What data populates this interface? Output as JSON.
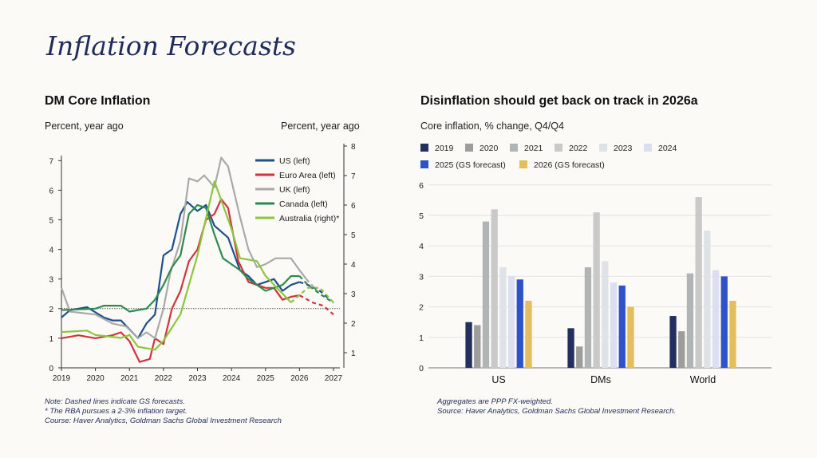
{
  "page_title": "Inflation Forecasts",
  "left_panel": {
    "title": "DM Core Inflation",
    "left_axis_label": "Percent, year ago",
    "right_axis_label": "Percent, year ago",
    "notes": [
      "Note: Dashed lines indicate GS forecasts.",
      "* The RBA pursues a 2-3% inflation target.",
      "Course: Haver Analytics, Goldman Sachs Global Investment Research"
    ]
  },
  "right_panel": {
    "title": "Disinflation should get back on track in 2026a",
    "subtitle": "Core inflation, % change, Q4/Q4",
    "notes": [
      "Aggregates are PPP FX-weighted.",
      "Source: Haver Analytics, Goldman Sachs Global Investment Research."
    ]
  },
  "chart_data": [
    {
      "type": "line",
      "title": "DM Core Inflation",
      "ylabel": "Percent, year ago",
      "y2label": "Percent, year ago",
      "xlim": [
        2019,
        2027
      ],
      "ylim": [
        0,
        7.4
      ],
      "y2lim": [
        0.5,
        8
      ],
      "x_ticks": [
        "2019",
        "2020",
        "2021",
        "2022",
        "2023",
        "2024",
        "2025",
        "2026",
        "2027"
      ],
      "y_ticks": [
        "0",
        "1",
        "2",
        "3",
        "4",
        "5",
        "6",
        "7"
      ],
      "y2_ticks": [
        "1",
        "2",
        "3",
        "4",
        "5",
        "6",
        "7",
        "8"
      ],
      "reference_line": 2,
      "forecast_start": 2026.2,
      "legend_position": "top-right",
      "series": [
        {
          "name": "US (left)",
          "axis": "left",
          "color": "#1f4e8c",
          "x": [
            2019,
            2019.25,
            2019.75,
            2020.25,
            2020.5,
            2020.75,
            2021,
            2021.25,
            2021.5,
            2021.75,
            2022,
            2022.25,
            2022.5,
            2022.7,
            2023,
            2023.25,
            2023.5,
            2023.9,
            2024.25,
            2024.5,
            2024.75,
            2025,
            2025.25,
            2025.5,
            2025.75,
            2026,
            2026.25,
            2026.6,
            2026.9
          ],
          "y": [
            1.7,
            1.95,
            2.05,
            1.7,
            1.6,
            1.6,
            1.3,
            1.0,
            1.5,
            1.8,
            3.8,
            4.0,
            5.2,
            5.6,
            5.3,
            5.5,
            4.8,
            4.4,
            3.3,
            3.1,
            2.8,
            2.9,
            3.0,
            2.6,
            2.8,
            2.9,
            2.8,
            2.6,
            2.3
          ]
        },
        {
          "name": "Euro Area (left)",
          "axis": "left",
          "color": "#d13438",
          "x": [
            2019,
            2019.5,
            2020,
            2020.5,
            2020.75,
            2021,
            2021.3,
            2021.6,
            2021.75,
            2022,
            2022.25,
            2022.5,
            2022.75,
            2023,
            2023.25,
            2023.5,
            2023.7,
            2023.9,
            2024.2,
            2024.5,
            2024.75,
            2025,
            2025.25,
            2025.5,
            2025.75,
            2026,
            2026.4,
            2026.7,
            2027
          ],
          "y": [
            1.0,
            1.1,
            1.0,
            1.1,
            1.2,
            0.9,
            0.2,
            0.3,
            1.0,
            0.8,
            2.0,
            2.6,
            3.6,
            4.0,
            5.0,
            5.2,
            5.7,
            5.4,
            3.6,
            2.9,
            2.8,
            2.7,
            2.7,
            2.3,
            2.4,
            2.45,
            2.2,
            2.1,
            1.8
          ]
        },
        {
          "name": "UK (left)",
          "axis": "left",
          "color": "#a9a9a9",
          "x": [
            2019,
            2019.25,
            2020,
            2020.5,
            2020.9,
            2021.25,
            2021.5,
            2021.75,
            2022,
            2022.2,
            2022.5,
            2022.75,
            2023,
            2023.2,
            2023.5,
            2023.7,
            2023.9,
            2024.25,
            2024.5,
            2024.75,
            2025,
            2025.3,
            2025.75,
            2026,
            2026.2,
            2026.6,
            2027
          ],
          "y": [
            2.7,
            1.9,
            1.8,
            1.5,
            1.4,
            1.0,
            1.2,
            1.0,
            2.0,
            3.2,
            4.3,
            6.4,
            6.3,
            6.5,
            6.1,
            7.1,
            6.8,
            5.1,
            4.0,
            3.4,
            3.5,
            3.7,
            3.7,
            3.3,
            3.0,
            2.5,
            2.2
          ]
        },
        {
          "name": "Canada (left)",
          "axis": "left",
          "color": "#2e8b4e",
          "x": [
            2019,
            2020,
            2020.25,
            2020.75,
            2021,
            2021.5,
            2021.75,
            2022,
            2022.25,
            2022.5,
            2022.75,
            2023,
            2023.25,
            2023.5,
            2023.75,
            2024,
            2024.25,
            2024.5,
            2024.75,
            2025,
            2025.5,
            2025.75,
            2026,
            2026.25,
            2026.6,
            2027
          ],
          "y": [
            1.95,
            2.0,
            2.1,
            2.1,
            1.9,
            2.0,
            2.3,
            2.8,
            3.4,
            3.8,
            5.2,
            5.5,
            5.4,
            4.5,
            3.7,
            3.5,
            3.3,
            3.0,
            2.8,
            2.6,
            2.8,
            3.1,
            3.1,
            2.8,
            2.5,
            2.2
          ]
        },
        {
          "name": "Australia (right)*",
          "axis": "right",
          "color": "#8cc63f",
          "x": [
            2019,
            2019.75,
            2020,
            2020.75,
            2021,
            2021.25,
            2021.75,
            2022,
            2022.5,
            2023,
            2023.5,
            2024,
            2024.25,
            2024.75,
            2025,
            2025.75,
            2026.25,
            2026.6,
            2027
          ],
          "y": [
            1.7,
            1.75,
            1.6,
            1.5,
            1.6,
            1.2,
            1.1,
            1.4,
            2.3,
            4.3,
            6.8,
            5.2,
            4.2,
            4.1,
            3.6,
            2.7,
            3.2,
            3.2,
            2.7
          ]
        }
      ]
    },
    {
      "type": "bar",
      "title": "Disinflation should get back on track in 2026a",
      "ylabel": "Core inflation, % change, Q4/Q4",
      "categories": [
        "US",
        "DMs",
        "World"
      ],
      "ylim": [
        0,
        6
      ],
      "y_ticks": [
        "0",
        "1",
        "2",
        "3",
        "4",
        "5",
        "6"
      ],
      "grid": true,
      "legend_position": "top",
      "series": [
        {
          "name": "2019",
          "color": "#232f5c",
          "values": [
            1.5,
            1.3,
            1.7
          ]
        },
        {
          "name": "2020",
          "color": "#9d9d9d",
          "values": [
            1.4,
            0.7,
            1.2
          ]
        },
        {
          "name": "2021",
          "color": "#b1b4b4",
          "values": [
            4.8,
            3.3,
            3.1
          ]
        },
        {
          "name": "2022",
          "color": "#c9c9c9",
          "values": [
            5.2,
            5.1,
            5.6
          ]
        },
        {
          "name": "2023",
          "color": "#dfe2e6",
          "values": [
            3.3,
            3.5,
            4.5
          ]
        },
        {
          "name": "2024",
          "color": "#dcdff1",
          "values": [
            3.0,
            2.8,
            3.2
          ]
        },
        {
          "name": "2025 (GS forecast)",
          "color": "#2d52c9",
          "values": [
            2.9,
            2.7,
            3.0
          ]
        },
        {
          "name": "2026 (GS forecast)",
          "color": "#e4bd5c",
          "values": [
            2.2,
            2.0,
            2.2
          ]
        }
      ]
    }
  ]
}
